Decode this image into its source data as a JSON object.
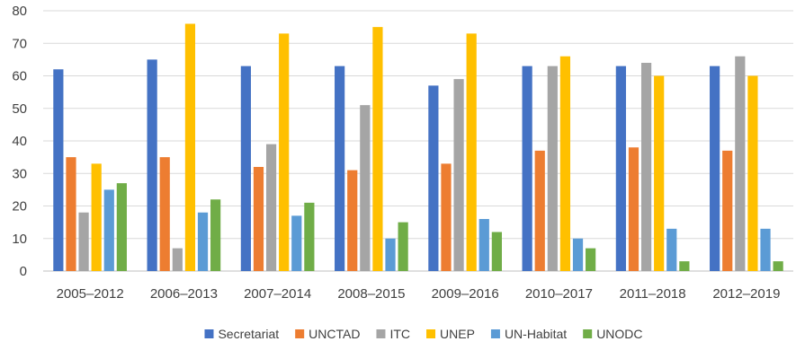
{
  "chart_data": {
    "type": "bar",
    "title": "",
    "xlabel": "",
    "ylabel": "",
    "ylim": [
      0,
      80
    ],
    "yticks": [
      0,
      10,
      20,
      30,
      40,
      50,
      60,
      70,
      80
    ],
    "grid": true,
    "legend_position": "bottom",
    "categories": [
      "2005–2012",
      "2006–2013",
      "2007–2014",
      "2008–2015",
      "2009–2016",
      "2010–2017",
      "2011–2018",
      "2012–2019"
    ],
    "series": [
      {
        "name": "Secretariat",
        "color": "#4472C4",
        "values": [
          62,
          65,
          63,
          63,
          57,
          63,
          63,
          63
        ]
      },
      {
        "name": "UNCTAD",
        "color": "#ED7D31",
        "values": [
          35,
          35,
          32,
          31,
          33,
          37,
          38,
          37
        ]
      },
      {
        "name": "ITC",
        "color": "#A5A5A5",
        "values": [
          18,
          7,
          39,
          51,
          59,
          63,
          64,
          66
        ]
      },
      {
        "name": "UNEP",
        "color": "#FFC000",
        "values": [
          33,
          76,
          73,
          75,
          73,
          66,
          60,
          60
        ]
      },
      {
        "name": "UN-Habitat",
        "color": "#5B9BD5",
        "values": [
          25,
          18,
          17,
          10,
          16,
          10,
          13,
          13
        ]
      },
      {
        "name": "UNODC",
        "color": "#70AD47",
        "values": [
          27,
          22,
          21,
          15,
          12,
          7,
          3,
          3
        ]
      }
    ]
  }
}
